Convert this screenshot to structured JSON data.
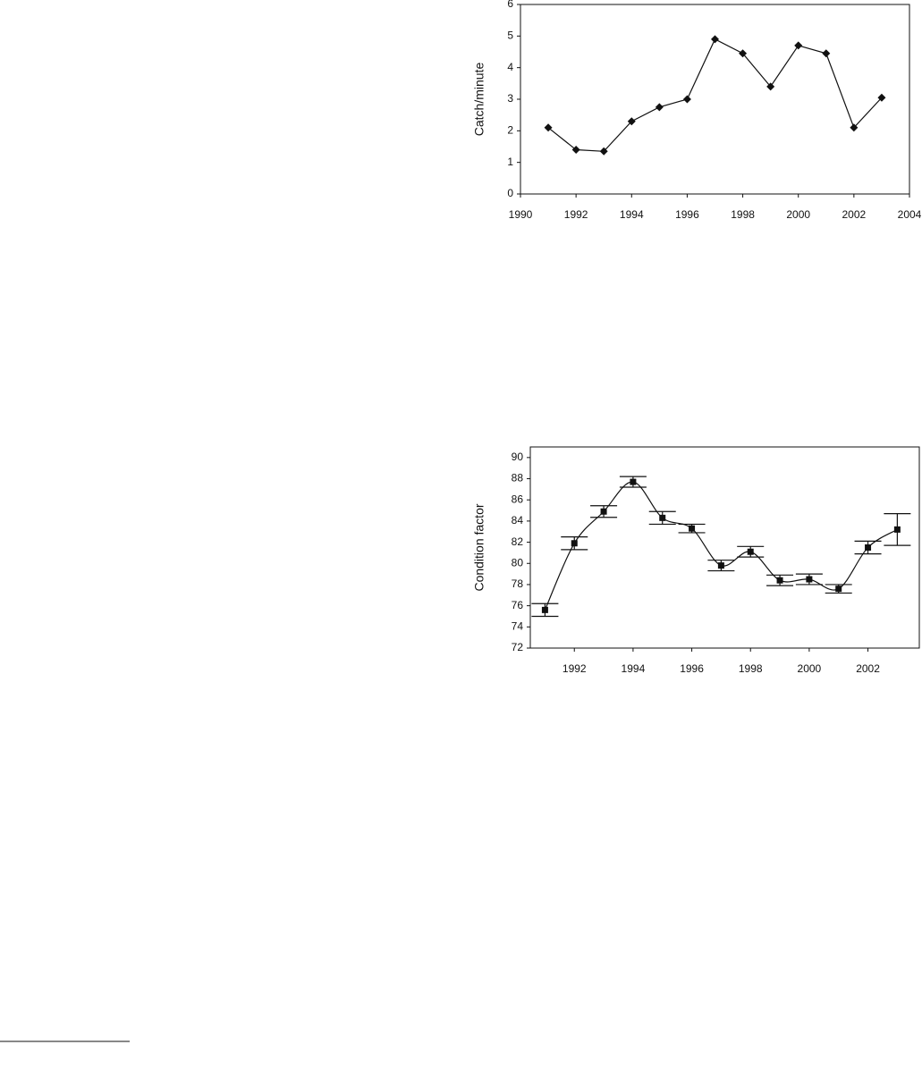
{
  "chart_data": [
    {
      "type": "line",
      "y_label": "Catch/minute",
      "x": [
        1991,
        1992,
        1993,
        1994,
        1995,
        1996,
        1997,
        1998,
        1999,
        2000,
        2001,
        2002,
        2003
      ],
      "values": [
        2.1,
        1.4,
        1.35,
        2.3,
        2.75,
        3.0,
        4.9,
        4.45,
        3.4,
        4.7,
        4.45,
        2.1,
        3.05
      ],
      "color": "#111111",
      "marker": "diamond",
      "smooth": false,
      "xlim": [
        1990,
        2004
      ],
      "xticks": [
        1990,
        1992,
        1994,
        1996,
        1998,
        2000,
        2002,
        2004
      ],
      "ylim": [
        0,
        6
      ],
      "yticks": [
        0,
        1,
        2,
        3,
        4,
        5,
        6
      ]
    },
    {
      "type": "line",
      "y_label": "Condition factor",
      "x": [
        1991,
        1992,
        1993,
        1994,
        1995,
        1996,
        1997,
        1998,
        1999,
        2000,
        2001,
        2002,
        2003
      ],
      "values": [
        75.6,
        81.9,
        84.9,
        87.7,
        84.3,
        83.3,
        79.8,
        81.1,
        78.4,
        78.5,
        77.6,
        81.5,
        83.2
      ],
      "errors": [
        0.6,
        0.6,
        0.55,
        0.5,
        0.6,
        0.4,
        0.5,
        0.5,
        0.5,
        0.5,
        0.4,
        0.6,
        1.5
      ],
      "color": "#111111",
      "marker": "square",
      "smooth": true,
      "xlim": [
        1990.5,
        2003.75
      ],
      "xticks": [
        1992,
        1994,
        1996,
        1998,
        2000,
        2002
      ],
      "ylim": [
        72,
        91
      ],
      "yticks": [
        72,
        74,
        76,
        78,
        80,
        82,
        84,
        86,
        88,
        90
      ]
    }
  ]
}
